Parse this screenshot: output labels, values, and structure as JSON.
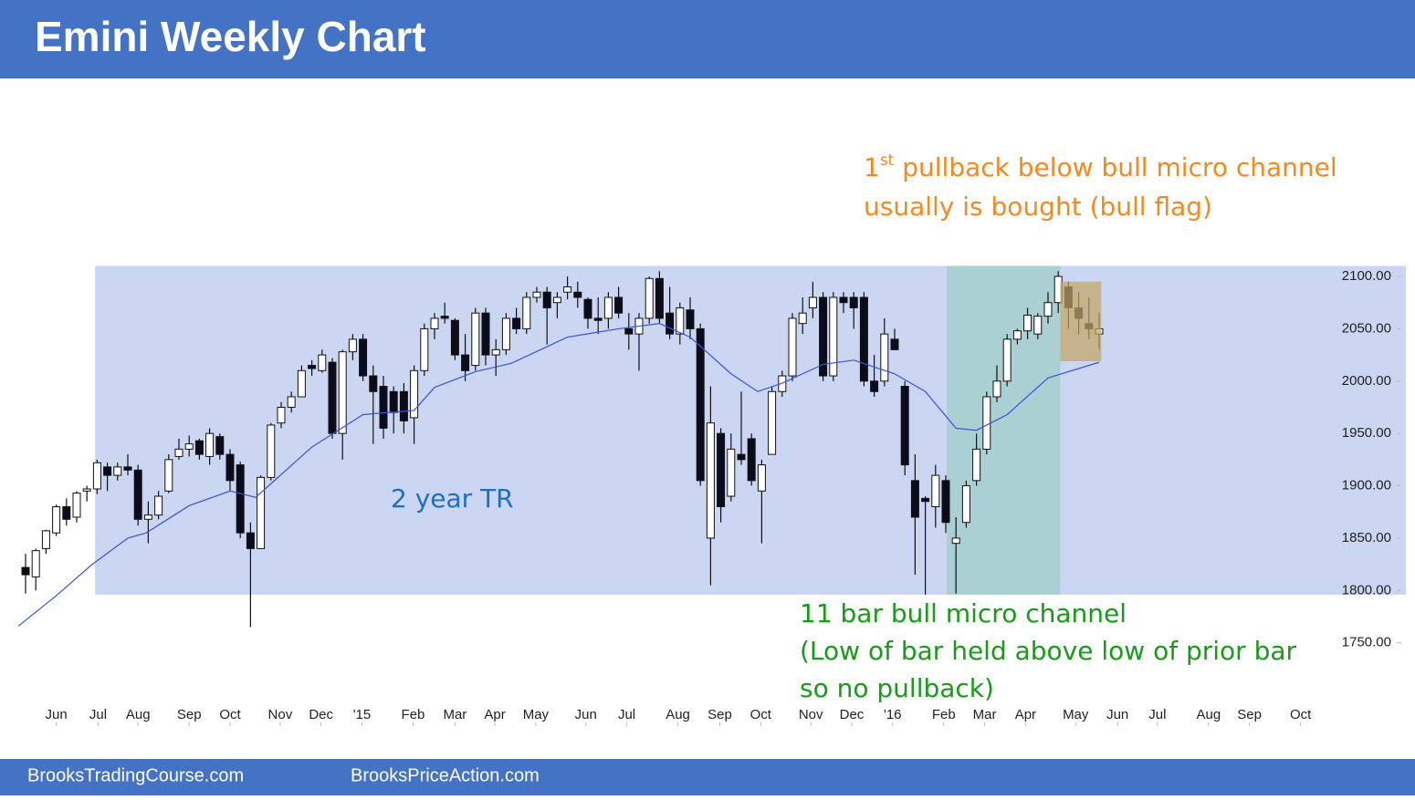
{
  "chart_data": {
    "type": "candlestick",
    "title": "Emini Weekly Chart",
    "ylim": [
      1680,
      2290
    ],
    "yticks": [
      {
        "value": 1750,
        "label": "1750.00"
      },
      {
        "value": 1800,
        "label": "1800.00"
      },
      {
        "value": 1850,
        "label": "1850.00"
      },
      {
        "value": 1900,
        "label": "1900.00"
      },
      {
        "value": 1950,
        "label": "1950.00"
      },
      {
        "value": 2000,
        "label": "2000.00"
      },
      {
        "value": 2050,
        "label": "2050.00"
      },
      {
        "value": 2100,
        "label": "2100.00"
      }
    ],
    "xlim": [
      -2,
      135
    ],
    "xticks": [
      {
        "value": 3,
        "label": "Jun"
      },
      {
        "value": 7.1,
        "label": "Jul"
      },
      {
        "value": 11,
        "label": "Aug"
      },
      {
        "value": 16,
        "label": "Sep"
      },
      {
        "value": 20,
        "label": "Oct"
      },
      {
        "value": 24.9,
        "label": "Nov"
      },
      {
        "value": 28.9,
        "label": "Dec"
      },
      {
        "value": 32.9,
        "label": "'15"
      },
      {
        "value": 37.9,
        "label": "Feb"
      },
      {
        "value": 42,
        "label": "Mar"
      },
      {
        "value": 45.9,
        "label": "Apr"
      },
      {
        "value": 49.9,
        "label": "May"
      },
      {
        "value": 54.8,
        "label": "Jun"
      },
      {
        "value": 58.8,
        "label": "Jul"
      },
      {
        "value": 63.8,
        "label": "Aug"
      },
      {
        "value": 67.9,
        "label": "Sep"
      },
      {
        "value": 71.9,
        "label": "Oct"
      },
      {
        "value": 76.8,
        "label": "Nov"
      },
      {
        "value": 80.8,
        "label": "Dec"
      },
      {
        "value": 84.8,
        "label": "'16"
      },
      {
        "value": 89.8,
        "label": "Feb"
      },
      {
        "value": 93.8,
        "label": "Mar"
      },
      {
        "value": 97.8,
        "label": "Apr"
      },
      {
        "value": 102.7,
        "label": "May"
      },
      {
        "value": 106.8,
        "label": "Jun"
      },
      {
        "value": 110.7,
        "label": "Jul"
      },
      {
        "value": 115.7,
        "label": "Aug"
      },
      {
        "value": 119.7,
        "label": "Sep"
      },
      {
        "value": 124.7,
        "label": "Oct"
      }
    ],
    "up_color": "#ffffff",
    "down_color": "#0b0b1c",
    "open": [
      1822,
      1813,
      1840,
      1855,
      1880,
      1870,
      1895,
      1897,
      1918,
      1910,
      1918,
      1915,
      1868,
      1872,
      1895,
      1928,
      1935,
      1943,
      1928,
      1947,
      1930,
      1920,
      1855,
      1840,
      1908,
      1960,
      1975,
      1985,
      2015,
      2010,
      2018,
      1950,
      2028,
      2040,
      2005,
      1995,
      1990,
      1990,
      1965,
      2010,
      2050,
      2062,
      2058,
      2025,
      2015,
      2065,
      2025,
      2030,
      2060,
      2050,
      2080,
      2085,
      2075,
      2085,
      2085,
      2078,
      2060,
      2060,
      2080,
      2050,
      2045,
      2060,
      2098,
      2065,
      2045,
      2068,
      2050,
      1850,
      1950,
      1890,
      1930,
      1945,
      1895,
      1930,
      1990,
      2005,
      2055,
      2070,
      2080,
      2005,
      2080,
      2080,
      2080,
      2000,
      2000,
      2040,
      1995,
      1905,
      1888,
      1880,
      1905,
      1845,
      1865,
      1905,
      1935,
      1985,
      2000,
      2040,
      2048,
      2045,
      2062,
      2075,
      2090,
      2070,
      2055,
      2045
    ],
    "high": [
      1835,
      1840,
      1858,
      1882,
      1888,
      1895,
      1900,
      1925,
      1922,
      1922,
      1930,
      1920,
      1885,
      1895,
      1930,
      1945,
      1948,
      1945,
      1955,
      1950,
      1935,
      1923,
      1865,
      1910,
      1960,
      1980,
      1990,
      2015,
      2020,
      2030,
      2022,
      2030,
      2045,
      2045,
      2015,
      2005,
      1995,
      1998,
      2015,
      2055,
      2065,
      2075,
      2060,
      2045,
      2070,
      2070,
      2040,
      2065,
      2070,
      2085,
      2090,
      2090,
      2085,
      2100,
      2095,
      2080,
      2080,
      2085,
      2090,
      2065,
      2065,
      2100,
      2105,
      2090,
      2075,
      2080,
      2055,
      1995,
      1955,
      1950,
      1990,
      1950,
      1925,
      1995,
      2010,
      2065,
      2080,
      2095,
      2085,
      2085,
      2085,
      2085,
      2085,
      2025,
      2060,
      2050,
      2000,
      1930,
      1890,
      1920,
      1910,
      1870,
      1905,
      1950,
      1990,
      2015,
      2045,
      2050,
      2070,
      2065,
      2085,
      2105,
      2095,
      2085,
      2080,
      2065
    ],
    "low": [
      1797,
      1800,
      1835,
      1852,
      1862,
      1865,
      1885,
      1892,
      1895,
      1905,
      1910,
      1862,
      1845,
      1868,
      1893,
      1925,
      1928,
      1925,
      1920,
      1925,
      1895,
      1850,
      1765,
      1840,
      1905,
      1955,
      1970,
      1985,
      2005,
      2008,
      1945,
      1925,
      2020,
      2000,
      1940,
      1945,
      1950,
      1950,
      1940,
      2005,
      2040,
      2055,
      2020,
      2000,
      2010,
      2015,
      2005,
      2025,
      2045,
      2045,
      2075,
      2035,
      2060,
      2078,
      2070,
      2050,
      2045,
      2050,
      2060,
      2030,
      2010,
      2055,
      2055,
      2040,
      2035,
      2040,
      1900,
      1805,
      1865,
      1885,
      1920,
      1900,
      1845,
      1930,
      1985,
      2000,
      2045,
      2060,
      2000,
      2000,
      2065,
      2050,
      1995,
      1985,
      1995,
      2035,
      1910,
      1815,
      1796,
      1860,
      1855,
      1797,
      1860,
      1900,
      1930,
      1980,
      1995,
      2035,
      2040,
      2040,
      2055,
      2065,
      2050,
      2045,
      2040,
      2030
    ],
    "close": [
      1815,
      1838,
      1857,
      1880,
      1868,
      1893,
      1897,
      1922,
      1910,
      1918,
      1915,
      1868,
      1872,
      1890,
      1925,
      1935,
      1940,
      1930,
      1950,
      1930,
      1905,
      1855,
      1840,
      1908,
      1958,
      1975,
      1985,
      2010,
      2012,
      2025,
      1950,
      2028,
      2040,
      2005,
      1990,
      1955,
      1970,
      1962,
      2010,
      2050,
      2060,
      2060,
      2025,
      2010,
      2065,
      2025,
      2030,
      2060,
      2050,
      2080,
      2085,
      2070,
      2080,
      2090,
      2080,
      2060,
      2058,
      2080,
      2065,
      2045,
      2060,
      2098,
      2060,
      2045,
      2070,
      2050,
      1905,
      1960,
      1880,
      1935,
      1925,
      1905,
      1920,
      1990,
      2005,
      2060,
      2065,
      2080,
      2005,
      2080,
      2075,
      2070,
      2000,
      1990,
      2045,
      2030,
      1920,
      1870,
      1885,
      1910,
      1865,
      1850,
      1900,
      1935,
      1985,
      2000,
      2040,
      2048,
      2063,
      2062,
      2075,
      2100,
      2070,
      2060,
      2050,
      2050
    ],
    "moving_average": {
      "color": "#3d52d9",
      "x": [
        -0.7,
        3,
        6.4,
        10,
        11.8,
        16,
        20,
        22.5,
        24,
        28,
        33,
        38,
        40,
        44,
        47.5,
        53,
        58,
        62,
        65,
        69,
        71.6,
        74,
        78,
        81,
        85,
        88,
        91,
        93,
        96,
        100,
        105
      ],
      "values": [
        1766,
        1795,
        1824,
        1850,
        1855,
        1881,
        1895,
        1889,
        1902,
        1937,
        1968,
        1972,
        1994,
        2009,
        2017,
        2042,
        2050,
        2055,
        2042,
        2007,
        1990,
        1998,
        2016,
        2020,
        2007,
        1990,
        1955,
        1953,
        1968,
        2003,
        2018
      ]
    },
    "zones": [
      {
        "x": [
          6.8,
          135
        ],
        "y": [
          1796,
          2110
        ],
        "color": "#cbd6f3"
      },
      {
        "x": [
          90.1,
          101.2
        ],
        "y": [
          1796,
          2110
        ],
        "color": "#abd0d3"
      },
      {
        "x": [
          101.2,
          105.2
        ],
        "y": [
          2019,
          2095
        ],
        "color": "#c2a566"
      }
    ],
    "annotations": [
      {
        "color": "#f28a22",
        "lines": [
          [
            "1",
            "st",
            " pullback below bull micro channel"
          ],
          [
            "usually is bought (bull flag)"
          ]
        ]
      },
      {
        "color": "#1f6fbf",
        "lines": [
          [
            "2 year TR"
          ]
        ]
      },
      {
        "color": "#1a9a1a",
        "lines": [
          [
            "11 bar bull micro channel"
          ],
          [
            "(Low of bar held above low of prior bar"
          ],
          [
            "so no pullback)"
          ]
        ]
      }
    ]
  },
  "footer": {
    "left": "BrooksTradingCourse.com",
    "right": "BrooksPriceAction.com"
  }
}
